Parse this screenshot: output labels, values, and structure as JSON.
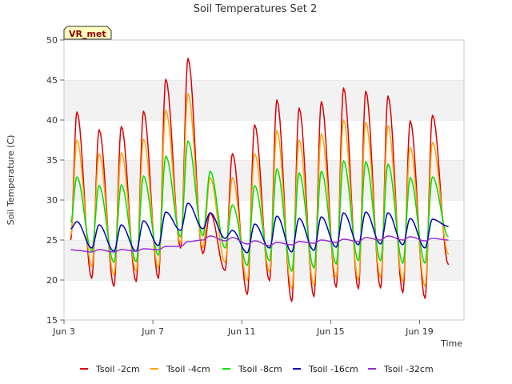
{
  "chart_data": {
    "type": "line",
    "title": "Soil Temperatures Set 2",
    "xlabel": "Time",
    "ylabel": "Soil Temperature (C)",
    "ylim": [
      15,
      50
    ],
    "xlim": [
      0,
      18
    ],
    "yticks": [
      15,
      20,
      25,
      30,
      35,
      40,
      45,
      50
    ],
    "x_ticks": [
      {
        "x": 0,
        "label": "Jun 3"
      },
      {
        "x": 4,
        "label": "Jun 7"
      },
      {
        "x": 8,
        "label": "Jun 11"
      },
      {
        "x": 12,
        "label": "Jun 15"
      },
      {
        "x": 16,
        "label": "Jun 19"
      }
    ],
    "grid": "horizontal bands",
    "legend_position": "bottom",
    "annotation": "VR_met",
    "x_units": "days since Jun 3",
    "x_start": 0.3,
    "x_end": 17.3,
    "peak_phase": 0.58,
    "series": [
      {
        "name": "Tsoil -2cm",
        "color": "#e00000",
        "daily_max": [
          41.0,
          38.8,
          39.2,
          41.1,
          45.1,
          47.7,
          28.4,
          35.8,
          39.4,
          42.5,
          41.5,
          42.3,
          44.0,
          43.6,
          43.0,
          39.9,
          40.6
        ],
        "daily_min": [
          20.8,
          20.2,
          19.2,
          19.8,
          20.2,
          24.0,
          23.3,
          21.2,
          18.2,
          19.9,
          17.3,
          17.9,
          19.1,
          18.9,
          19.0,
          18.4,
          17.7
        ],
        "start_value": 25.0,
        "end_value": 21.9
      },
      {
        "name": "Tsoil -4cm",
        "color": "#ffa500",
        "daily_max": [
          37.5,
          35.8,
          35.9,
          37.6,
          41.2,
          43.3,
          32.8,
          32.8,
          35.8,
          38.7,
          37.5,
          38.3,
          40.0,
          39.7,
          39.3,
          36.6,
          37.2
        ],
        "daily_min": [
          22.4,
          21.7,
          20.6,
          21.1,
          21.5,
          24.6,
          24.0,
          22.2,
          19.9,
          21.0,
          18.9,
          19.3,
          20.3,
          20.0,
          20.3,
          19.8,
          19.2
        ],
        "start_value": 25.5,
        "end_value": 23.2
      },
      {
        "name": "Tsoil -8cm",
        "color": "#00e000",
        "daily_max": [
          32.9,
          31.8,
          31.9,
          33.0,
          35.5,
          37.4,
          33.6,
          29.4,
          31.8,
          33.9,
          33.4,
          33.6,
          34.9,
          34.8,
          34.5,
          32.8,
          32.9
        ],
        "daily_min": [
          24.3,
          23.6,
          22.2,
          22.3,
          23.1,
          25.4,
          25.5,
          24.0,
          21.8,
          22.4,
          21.1,
          21.5,
          22.0,
          22.4,
          22.4,
          22.1,
          22.1
        ],
        "start_value": 27.2,
        "end_value": 25.4
      },
      {
        "name": "Tsoil -16cm",
        "color": "#0000c0",
        "daily_max": [
          27.3,
          26.9,
          26.9,
          27.4,
          28.5,
          29.6,
          28.4,
          26.2,
          27.0,
          28.0,
          27.7,
          27.9,
          28.4,
          28.5,
          28.4,
          27.7,
          27.6
        ],
        "daily_min": [
          24.1,
          24.0,
          23.6,
          23.6,
          24.3,
          26.2,
          26.4,
          25.2,
          23.4,
          24.0,
          23.5,
          23.7,
          24.1,
          24.4,
          24.5,
          24.4,
          24.0
        ],
        "start_value": 26.4,
        "end_value": 26.7
      },
      {
        "name": "Tsoil -32cm",
        "color": "#9a30d0",
        "daily_max": [
          23.7,
          23.8,
          23.8,
          23.9,
          24.2,
          24.8,
          25.5,
          25.3,
          24.9,
          24.7,
          24.8,
          25.0,
          25.1,
          25.3,
          25.5,
          25.4,
          25.2
        ],
        "daily_min": [
          23.4,
          23.5,
          23.5,
          23.6,
          23.8,
          24.2,
          25.0,
          24.9,
          24.5,
          24.3,
          24.4,
          24.6,
          24.7,
          24.8,
          25.0,
          25.0,
          24.9
        ],
        "start_value": 23.8,
        "end_value": 25.0
      }
    ]
  }
}
